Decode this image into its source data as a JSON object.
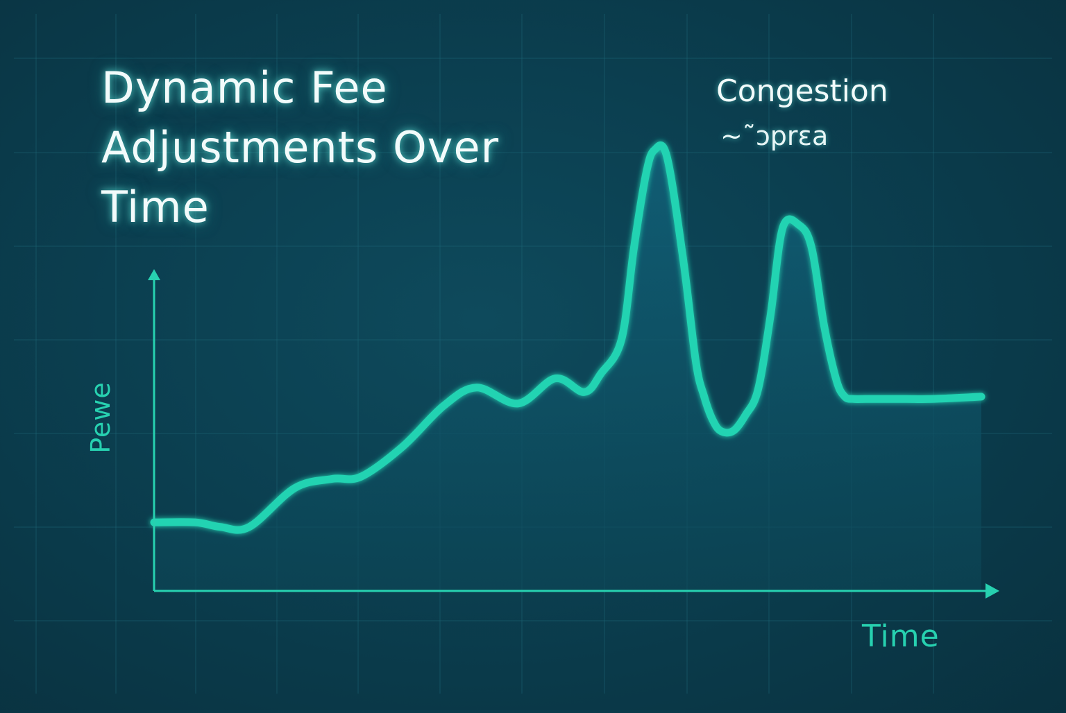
{
  "colors": {
    "line": "#22d3b2",
    "axis": "#27d1b0",
    "fill": "#0f5a6e",
    "grid": "#1e6676",
    "title_text": "#f2fbfb"
  },
  "chart_data": {
    "type": "area",
    "title": "Dynamic Fee Adjustments Over Time",
    "annotation": {
      "title": "Congestion",
      "subtitle": "~˜ɔprɛa"
    },
    "xlabel": "Time",
    "ylabel": "Pewe",
    "ticks_shown": false,
    "grid": true,
    "xlim": [
      0,
      100
    ],
    "ylim": [
      0,
      100
    ],
    "series": [
      {
        "x": [
          0,
          5,
          8,
          11.5,
          17,
          21.5,
          25,
          30,
          35,
          39,
          44,
          48.5,
          52,
          54,
          56.5,
          58,
          59.5,
          60.5,
          62,
          64,
          65.5,
          66.5,
          67.5,
          68.5,
          70,
          71.5,
          73,
          74.5,
          76,
          78,
          79.5,
          81,
          82.5,
          83.5,
          84.5,
          86,
          88,
          91,
          94,
          100
        ],
        "y": [
          15,
          15,
          14,
          14,
          22.5,
          24.5,
          25,
          31.5,
          40.5,
          44.5,
          41,
          46.5,
          43.5,
          47.5,
          55,
          75,
          91.5,
          96.5,
          95,
          72,
          50,
          42.5,
          37.5,
          35,
          35,
          38.5,
          44,
          60,
          79.5,
          80,
          75,
          58,
          46,
          42.5,
          42,
          42,
          42,
          42,
          42,
          42.5
        ]
      }
    ]
  }
}
